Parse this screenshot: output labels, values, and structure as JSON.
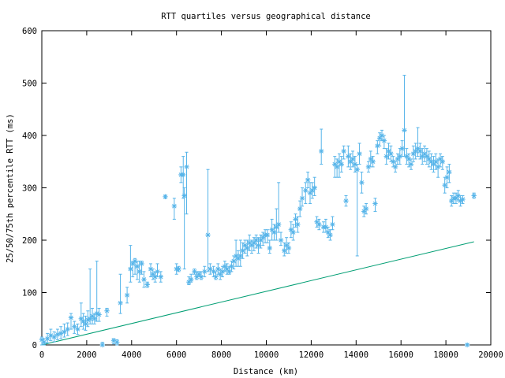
{
  "colors": {
    "errorbar": "#56b4e9",
    "median_marker": "#56b4e9",
    "reference_line": "#009e73",
    "axis": "#000000",
    "background": "#ffffff"
  },
  "chart_data": {
    "type": "scatter",
    "title": "RTT quartiles versus geographical distance",
    "xlabel": "Distance (km)",
    "ylabel": "25/50/75th percentile RTT (ms)",
    "xlim": [
      0,
      20000
    ],
    "ylim": [
      0,
      600
    ],
    "xticks": [
      "0",
      "2000",
      "4000",
      "6000",
      "8000",
      "10000",
      "12000",
      "14000",
      "16000",
      "18000",
      "20000"
    ],
    "yticks": [
      "0",
      "100",
      "200",
      "300",
      "400",
      "500",
      "600"
    ],
    "grid": false,
    "legend": "none",
    "series": [
      {
        "name": "RTT quartiles (25/50/75th percentile)",
        "style": "errorbars with asterisk at median",
        "points": [
          [
            0,
            10,
            0,
            15
          ],
          [
            100,
            5,
            0,
            12
          ],
          [
            250,
            12,
            4,
            22
          ],
          [
            400,
            18,
            8,
            30
          ],
          [
            550,
            15,
            6,
            25
          ],
          [
            700,
            20,
            10,
            30
          ],
          [
            850,
            22,
            12,
            35
          ],
          [
            1000,
            25,
            15,
            40
          ],
          [
            1150,
            30,
            18,
            42
          ],
          [
            1300,
            52,
            30,
            60
          ],
          [
            1450,
            35,
            22,
            45
          ],
          [
            1600,
            30,
            20,
            40
          ],
          [
            1750,
            50,
            35,
            80
          ],
          [
            1850,
            45,
            30,
            60
          ],
          [
            1950,
            40,
            28,
            55
          ],
          [
            2050,
            48,
            35,
            65
          ],
          [
            2150,
            50,
            40,
            145
          ],
          [
            2250,
            55,
            40,
            70
          ],
          [
            2350,
            50,
            40,
            60
          ],
          [
            2450,
            60,
            45,
            160
          ],
          [
            2550,
            58,
            45,
            70
          ],
          [
            2700,
            0,
            0,
            5
          ],
          [
            2900,
            65,
            55,
            70
          ],
          [
            3200,
            8,
            2,
            12
          ],
          [
            3350,
            5,
            0,
            10
          ],
          [
            3500,
            80,
            60,
            135
          ],
          [
            3800,
            95,
            80,
            110
          ],
          [
            3950,
            145,
            120,
            190
          ],
          [
            4050,
            155,
            130,
            160
          ],
          [
            4150,
            160,
            135,
            165
          ],
          [
            4250,
            150,
            125,
            160
          ],
          [
            4350,
            140,
            120,
            160
          ],
          [
            4450,
            155,
            135,
            160
          ],
          [
            4550,
            125,
            110,
            140
          ],
          [
            4700,
            115,
            110,
            120
          ],
          [
            4850,
            145,
            130,
            155
          ],
          [
            4950,
            135,
            125,
            145
          ],
          [
            5050,
            130,
            120,
            140
          ],
          [
            5150,
            140,
            130,
            155
          ],
          [
            5300,
            130,
            120,
            140
          ],
          [
            5500,
            283,
            280,
            286
          ],
          [
            5900,
            265,
            240,
            280
          ],
          [
            6000,
            145,
            135,
            155
          ],
          [
            6100,
            145,
            140,
            150
          ],
          [
            6200,
            325,
            310,
            340
          ],
          [
            6300,
            325,
            280,
            360
          ],
          [
            6350,
            285,
            145,
            300
          ],
          [
            6450,
            340,
            250,
            368
          ],
          [
            6550,
            120,
            115,
            130
          ],
          [
            6650,
            125,
            120,
            135
          ],
          [
            6800,
            140,
            135,
            145
          ],
          [
            6900,
            130,
            125,
            140
          ],
          [
            7000,
            135,
            130,
            140
          ],
          [
            7100,
            130,
            125,
            140
          ],
          [
            7250,
            140,
            130,
            150
          ],
          [
            7400,
            210,
            140,
            335
          ],
          [
            7500,
            145,
            135,
            155
          ],
          [
            7650,
            140,
            130,
            150
          ],
          [
            7750,
            130,
            125,
            140
          ],
          [
            7850,
            145,
            135,
            155
          ],
          [
            7950,
            135,
            125,
            145
          ],
          [
            8050,
            140,
            130,
            150
          ],
          [
            8150,
            150,
            140,
            160
          ],
          [
            8250,
            145,
            135,
            155
          ],
          [
            8350,
            140,
            135,
            150
          ],
          [
            8450,
            150,
            140,
            160
          ],
          [
            8550,
            160,
            145,
            170
          ],
          [
            8650,
            170,
            150,
            200
          ],
          [
            8750,
            165,
            150,
            180
          ],
          [
            8850,
            170,
            150,
            200
          ],
          [
            8950,
            180,
            165,
            195
          ],
          [
            9050,
            190,
            175,
            200
          ],
          [
            9150,
            185,
            170,
            200
          ],
          [
            9250,
            195,
            180,
            210
          ],
          [
            9350,
            190,
            175,
            200
          ],
          [
            9450,
            195,
            180,
            205
          ],
          [
            9550,
            200,
            185,
            210
          ],
          [
            9650,
            190,
            175,
            205
          ],
          [
            9750,
            200,
            185,
            210
          ],
          [
            9850,
            205,
            190,
            215
          ],
          [
            9950,
            210,
            195,
            220
          ],
          [
            10050,
            210,
            195,
            220
          ],
          [
            10150,
            185,
            175,
            200
          ],
          [
            10250,
            220,
            200,
            240
          ],
          [
            10350,
            215,
            200,
            230
          ],
          [
            10450,
            225,
            200,
            260
          ],
          [
            10550,
            230,
            215,
            310
          ],
          [
            10650,
            200,
            190,
            215
          ],
          [
            10800,
            180,
            170,
            195
          ],
          [
            10900,
            190,
            175,
            205
          ],
          [
            11000,
            185,
            175,
            195
          ],
          [
            11100,
            220,
            205,
            235
          ],
          [
            11200,
            215,
            200,
            230
          ],
          [
            11300,
            240,
            225,
            250
          ],
          [
            11400,
            230,
            215,
            245
          ],
          [
            11500,
            260,
            245,
            275
          ],
          [
            11600,
            280,
            265,
            300
          ],
          [
            11750,
            295,
            270,
            310
          ],
          [
            11850,
            315,
            300,
            330
          ],
          [
            11950,
            290,
            270,
            310
          ],
          [
            12050,
            295,
            280,
            310
          ],
          [
            12150,
            300,
            285,
            320
          ],
          [
            12250,
            235,
            225,
            245
          ],
          [
            12350,
            230,
            220,
            240
          ],
          [
            12450,
            370,
            345,
            412
          ],
          [
            12550,
            225,
            215,
            235
          ],
          [
            12650,
            225,
            215,
            240
          ],
          [
            12750,
            215,
            205,
            225
          ],
          [
            12850,
            210,
            200,
            220
          ],
          [
            12950,
            230,
            220,
            245
          ],
          [
            13050,
            345,
            320,
            360
          ],
          [
            13150,
            340,
            320,
            355
          ],
          [
            13250,
            350,
            320,
            365
          ],
          [
            13350,
            345,
            330,
            360
          ],
          [
            13450,
            370,
            355,
            380
          ],
          [
            13550,
            275,
            265,
            285
          ],
          [
            13650,
            360,
            340,
            380
          ],
          [
            13750,
            350,
            335,
            365
          ],
          [
            13850,
            355,
            340,
            370
          ],
          [
            13950,
            345,
            330,
            360
          ],
          [
            14050,
            335,
            170,
            345
          ],
          [
            14150,
            365,
            345,
            385
          ],
          [
            14250,
            310,
            290,
            330
          ],
          [
            14350,
            255,
            245,
            265
          ],
          [
            14450,
            260,
            250,
            270
          ],
          [
            14550,
            340,
            330,
            350
          ],
          [
            14650,
            355,
            340,
            370
          ],
          [
            14750,
            350,
            340,
            360
          ],
          [
            14850,
            270,
            255,
            280
          ],
          [
            14950,
            380,
            365,
            390
          ],
          [
            15050,
            395,
            380,
            405
          ],
          [
            15150,
            400,
            390,
            410
          ],
          [
            15250,
            390,
            375,
            400
          ],
          [
            15350,
            360,
            345,
            375
          ],
          [
            15450,
            370,
            355,
            385
          ],
          [
            15550,
            365,
            350,
            380
          ],
          [
            15650,
            350,
            340,
            360
          ],
          [
            15750,
            340,
            330,
            350
          ],
          [
            15850,
            355,
            345,
            365
          ],
          [
            15950,
            360,
            345,
            375
          ],
          [
            16050,
            375,
            360,
            390
          ],
          [
            16150,
            410,
            360,
            515
          ],
          [
            16250,
            360,
            345,
            375
          ],
          [
            16350,
            355,
            340,
            365
          ],
          [
            16450,
            345,
            335,
            355
          ],
          [
            16550,
            365,
            350,
            380
          ],
          [
            16650,
            370,
            355,
            385
          ],
          [
            16750,
            375,
            360,
            415
          ],
          [
            16850,
            370,
            355,
            385
          ],
          [
            16950,
            360,
            345,
            375
          ],
          [
            17050,
            365,
            350,
            380
          ],
          [
            17150,
            360,
            345,
            375
          ],
          [
            17250,
            355,
            340,
            370
          ],
          [
            17350,
            350,
            335,
            365
          ],
          [
            17450,
            345,
            330,
            360
          ],
          [
            17550,
            350,
            335,
            365
          ],
          [
            17650,
            340,
            320,
            355
          ],
          [
            17750,
            355,
            340,
            365
          ],
          [
            17850,
            350,
            335,
            360
          ],
          [
            17950,
            305,
            290,
            320
          ],
          [
            18050,
            320,
            300,
            340
          ],
          [
            18150,
            330,
            310,
            345
          ],
          [
            18250,
            275,
            265,
            285
          ],
          [
            18350,
            280,
            270,
            290
          ],
          [
            18450,
            280,
            270,
            290
          ],
          [
            18550,
            285,
            275,
            295
          ],
          [
            18650,
            275,
            265,
            285
          ],
          [
            18750,
            278,
            270,
            285
          ],
          [
            18950,
            0,
            0,
            2
          ],
          [
            19250,
            285,
            280,
            290
          ]
        ]
      },
      {
        "name": "Reference line",
        "style": "line",
        "x": [
          0,
          19250
        ],
        "y": [
          0,
          197
        ]
      }
    ]
  }
}
